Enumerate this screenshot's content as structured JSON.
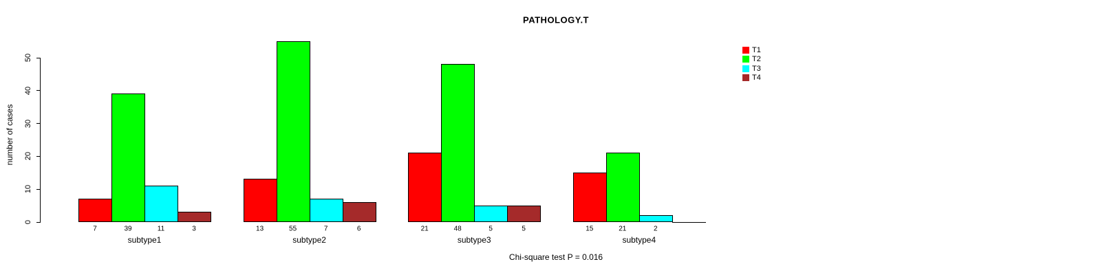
{
  "chart_data": {
    "type": "bar",
    "title": "PATHOLOGY.T",
    "ylabel": "number of cases",
    "xlabel": "",
    "ylim": [
      0,
      55
    ],
    "yticks": [
      0,
      10,
      20,
      30,
      40,
      50
    ],
    "categories": [
      "subtype1",
      "subtype2",
      "subtype3",
      "subtype4"
    ],
    "series": [
      {
        "name": "T1",
        "color": "#ff0000",
        "values": [
          7,
          13,
          21,
          15
        ]
      },
      {
        "name": "T2",
        "color": "#00ff00",
        "values": [
          39,
          55,
          48,
          21
        ]
      },
      {
        "name": "T3",
        "color": "#00ffff",
        "values": [
          11,
          7,
          5,
          2
        ]
      },
      {
        "name": "T4",
        "color": "#a52a2a",
        "values": [
          3,
          6,
          5,
          0
        ]
      }
    ],
    "show_values_under_bars": true,
    "legend_position": "top-right",
    "grid": false,
    "annotation": "Chi-square test P = 0.016",
    "bar_border_color": "#000000",
    "background_color": "#ffffff",
    "text_color": "#000000"
  }
}
